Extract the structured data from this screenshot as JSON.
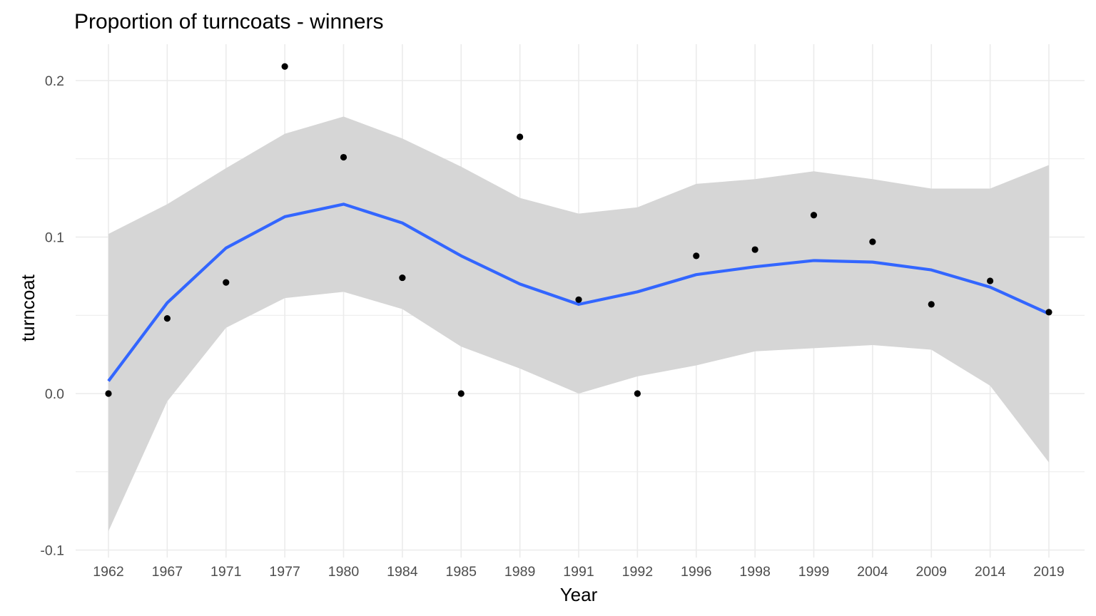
{
  "chart_data": {
    "type": "line",
    "title": "Proportion of  turncoats - winners",
    "xlabel": "Year",
    "ylabel": "turncoat",
    "categories": [
      "1962",
      "1967",
      "1971",
      "1977",
      "1980",
      "1984",
      "1985",
      "1989",
      "1991",
      "1992",
      "1996",
      "1998",
      "1999",
      "2004",
      "2009",
      "2014",
      "2019"
    ],
    "y_ticks": [
      "-0.1",
      "0.0",
      "0.1",
      "0.2"
    ],
    "ylim": [
      -0.1,
      0.22
    ],
    "grid": true,
    "points": [
      0.0,
      0.048,
      0.071,
      0.209,
      0.151,
      0.074,
      0.0,
      0.164,
      0.06,
      0.0,
      0.088,
      0.092,
      0.114,
      0.097,
      0.057,
      0.072,
      0.052
    ],
    "smooth": {
      "fit": [
        0.008,
        0.058,
        0.093,
        0.113,
        0.121,
        0.109,
        0.088,
        0.07,
        0.057,
        0.065,
        0.076,
        0.081,
        0.085,
        0.084,
        0.079,
        0.068,
        0.051
      ],
      "upper": [
        0.102,
        0.121,
        0.144,
        0.166,
        0.177,
        0.163,
        0.145,
        0.125,
        0.115,
        0.119,
        0.134,
        0.137,
        0.142,
        0.137,
        0.131,
        0.131,
        0.146
      ],
      "lower": [
        -0.088,
        -0.005,
        0.042,
        0.061,
        0.065,
        0.054,
        0.03,
        0.016,
        0.0,
        0.011,
        0.018,
        0.027,
        0.029,
        0.031,
        0.028,
        0.005,
        -0.044
      ]
    },
    "colors": {
      "line": "#3366FF",
      "ribbon": "#D6D6D6",
      "points": "#000000",
      "grid": "#EBEBEB"
    }
  }
}
